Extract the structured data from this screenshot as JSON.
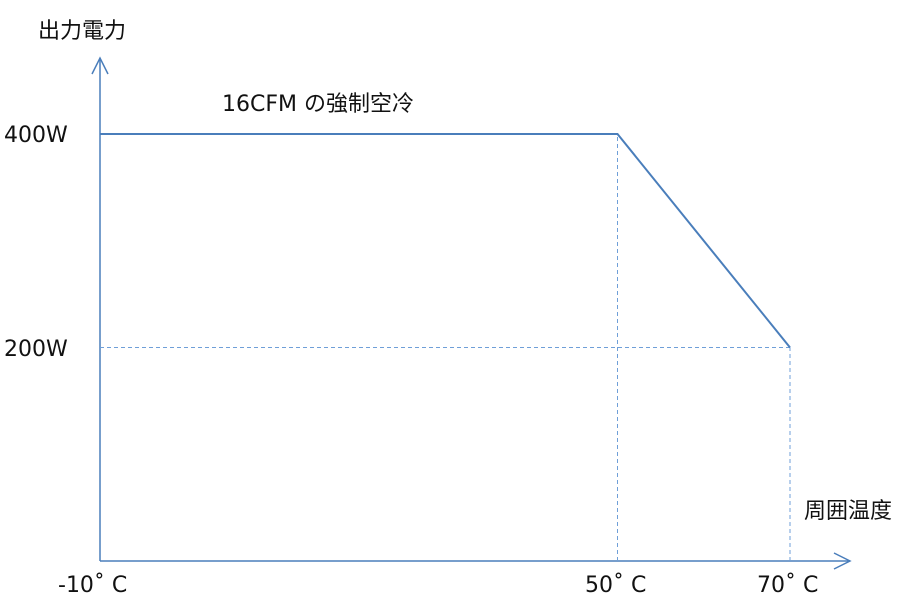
{
  "chart_data": {
    "type": "line",
    "title": "",
    "ylabel": "出力電力",
    "xlabel": "周囲温度",
    "annotation": "16CFM の強制空冷",
    "x_ticks": [
      {
        "value": -10,
        "label": "-10˚ C"
      },
      {
        "value": 50,
        "label": "50˚ C"
      },
      {
        "value": 70,
        "label": "70˚ C"
      }
    ],
    "y_ticks": [
      {
        "value": 200,
        "label": "200W"
      },
      {
        "value": 400,
        "label": "400W"
      }
    ],
    "series": [
      {
        "points": [
          {
            "x": -10,
            "y": 400
          },
          {
            "x": 50,
            "y": 400
          },
          {
            "x": 70,
            "y": 200
          }
        ]
      }
    ],
    "reference_lines": [
      {
        "from": {
          "x": 50,
          "y": 0
        },
        "to": {
          "x": 50,
          "y": 400
        }
      },
      {
        "from": {
          "x": 70,
          "y": 0
        },
        "to": {
          "x": 70,
          "y": 200
        }
      },
      {
        "from": {
          "x": -10,
          "y": 200
        },
        "to": {
          "x": 70,
          "y": 200
        }
      }
    ],
    "xlim": [
      -10,
      70
    ],
    "ylim": [
      0,
      400
    ],
    "grid": false,
    "colors": {
      "line": "#4a7ebb",
      "axis": "#4a7ebb",
      "reference": "#6f9fd8",
      "text": "#111111"
    }
  }
}
